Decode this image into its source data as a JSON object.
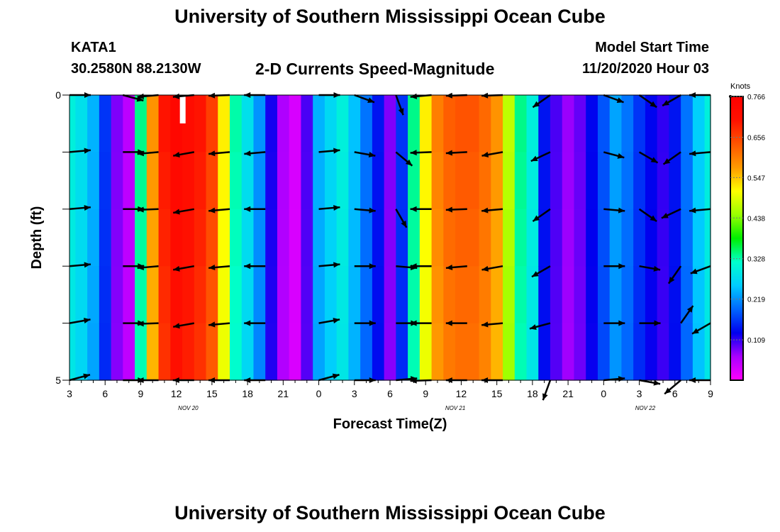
{
  "header": {
    "title": "University of Southern Mississippi Ocean Cube",
    "station": "KATA1",
    "coords": "30.2580N 88.2130W",
    "subtitle": "2-D Currents Speed-Magnitude",
    "model_start_label": "Model Start Time",
    "model_start_value": "11/20/2020 Hour 03"
  },
  "footer": {
    "title": "University of Southern Mississippi Ocean Cube"
  },
  "chart_data": {
    "type": "heatmap",
    "title": "2-D Currents Speed-Magnitude",
    "xlabel": "Forecast Time(Z)",
    "ylabel": "Depth (ft)",
    "x_range": [
      3,
      57
    ],
    "y_range": [
      0,
      5
    ],
    "x_ticks": [
      {
        "hour": 3,
        "label": "3"
      },
      {
        "hour": 6,
        "label": "6"
      },
      {
        "hour": 9,
        "label": "9"
      },
      {
        "hour": 12,
        "label": "12"
      },
      {
        "hour": 15,
        "label": "15"
      },
      {
        "hour": 18,
        "label": "18"
      },
      {
        "hour": 21,
        "label": "21"
      },
      {
        "hour": 24,
        "label": "0"
      },
      {
        "hour": 27,
        "label": "3"
      },
      {
        "hour": 30,
        "label": "6"
      },
      {
        "hour": 33,
        "label": "9"
      },
      {
        "hour": 36,
        "label": "12"
      },
      {
        "hour": 39,
        "label": "15"
      },
      {
        "hour": 42,
        "label": "18"
      },
      {
        "hour": 45,
        "label": "21"
      },
      {
        "hour": 48,
        "label": "0"
      },
      {
        "hour": 51,
        "label": "3"
      },
      {
        "hour": 54,
        "label": "6"
      },
      {
        "hour": 57,
        "label": "9"
      }
    ],
    "y_ticks": [
      {
        "depth": 0,
        "label": "0"
      },
      {
        "depth": 5,
        "label": "5"
      }
    ],
    "date_labels": [
      {
        "hour": 13,
        "label": "NOV 20"
      },
      {
        "hour": 35.5,
        "label": "NOV 21"
      },
      {
        "hour": 51.5,
        "label": "NOV 22"
      }
    ],
    "colorbar": {
      "title": "Knots",
      "min": 0.0,
      "max": 0.766,
      "ticks": [
        "0.766",
        "0.656",
        "0.547",
        "0.438",
        "0.328",
        "0.219",
        "0.109"
      ],
      "colors": [
        "#ff00ff",
        "#aa00ff",
        "#0000ee",
        "#0066ff",
        "#00ccff",
        "#00ffcc",
        "#00ee00",
        "#99ff00",
        "#ffff00",
        "#ff9900",
        "#ff5500",
        "#ff1100",
        "#ff0000"
      ]
    },
    "speed_profile": [
      {
        "hour": 3,
        "speed": 0.3
      },
      {
        "hour": 4,
        "speed": 0.28
      },
      {
        "hour": 5,
        "speed": 0.24
      },
      {
        "hour": 6,
        "speed": 0.16
      },
      {
        "hour": 7,
        "speed": 0.08
      },
      {
        "hour": 8,
        "speed": 0.05
      },
      {
        "hour": 9,
        "speed": 0.34
      },
      {
        "hour": 10,
        "speed": 0.58
      },
      {
        "hour": 11,
        "speed": 0.7
      },
      {
        "hour": 12,
        "speed": 0.74
      },
      {
        "hour": 13,
        "speed": 0.72
      },
      {
        "hour": 14,
        "speed": 0.7
      },
      {
        "hour": 15,
        "speed": 0.66
      },
      {
        "hour": 16,
        "speed": 0.52
      },
      {
        "hour": 17,
        "speed": 0.33
      },
      {
        "hour": 18,
        "speed": 0.28
      },
      {
        "hour": 19,
        "speed": 0.22
      },
      {
        "hour": 20,
        "speed": 0.12
      },
      {
        "hour": 21,
        "speed": 0.06
      },
      {
        "hour": 22,
        "speed": 0.03
      },
      {
        "hour": 23,
        "speed": 0.1
      },
      {
        "hour": 24,
        "speed": 0.24
      },
      {
        "hour": 25,
        "speed": 0.27
      },
      {
        "hour": 26,
        "speed": 0.3
      },
      {
        "hour": 27,
        "speed": 0.25
      },
      {
        "hour": 28,
        "speed": 0.2
      },
      {
        "hour": 29,
        "speed": 0.14
      },
      {
        "hour": 30,
        "speed": 0.08
      },
      {
        "hour": 31,
        "speed": 0.16
      },
      {
        "hour": 32,
        "speed": 0.34
      },
      {
        "hour": 33,
        "speed": 0.52
      },
      {
        "hour": 34,
        "speed": 0.6
      },
      {
        "hour": 35,
        "speed": 0.63
      },
      {
        "hour": 36,
        "speed": 0.64
      },
      {
        "hour": 37,
        "speed": 0.64
      },
      {
        "hour": 38,
        "speed": 0.62
      },
      {
        "hour": 39,
        "speed": 0.58
      },
      {
        "hour": 40,
        "speed": 0.47
      },
      {
        "hour": 41,
        "speed": 0.34
      },
      {
        "hour": 42,
        "speed": 0.3
      },
      {
        "hour": 43,
        "speed": 0.14
      },
      {
        "hour": 44,
        "speed": 0.1
      },
      {
        "hour": 45,
        "speed": 0.07
      },
      {
        "hour": 46,
        "speed": 0.09
      },
      {
        "hour": 47,
        "speed": 0.13
      },
      {
        "hour": 48,
        "speed": 0.18
      },
      {
        "hour": 49,
        "speed": 0.23
      },
      {
        "hour": 50,
        "speed": 0.2
      },
      {
        "hour": 51,
        "speed": 0.16
      },
      {
        "hour": 52,
        "speed": 0.13
      },
      {
        "hour": 53,
        "speed": 0.11
      },
      {
        "hour": 54,
        "speed": 0.14
      },
      {
        "hour": 55,
        "speed": 0.2
      },
      {
        "hour": 56,
        "speed": 0.26
      },
      {
        "hour": 57,
        "speed": 0.3
      }
    ],
    "vectors": [
      {
        "hour": 3,
        "angles": [
          0,
          5,
          5,
          5,
          10,
          15
        ]
      },
      {
        "hour": 7.5,
        "angles": [
          -15,
          0,
          0,
          0,
          0,
          0
        ]
      },
      {
        "hour": 10.5,
        "angles": [
          185,
          185,
          182,
          185,
          182,
          180
        ]
      },
      {
        "hour": 13.5,
        "angles": [
          185,
          190,
          190,
          190,
          190,
          180
        ]
      },
      {
        "hour": 16.5,
        "angles": [
          182,
          185,
          185,
          185,
          185,
          180
        ]
      },
      {
        "hour": 19.5,
        "angles": [
          180,
          185,
          180,
          180,
          180,
          180
        ]
      },
      {
        "hour": 24,
        "angles": [
          0,
          5,
          5,
          5,
          10,
          15
        ]
      },
      {
        "hour": 27,
        "angles": [
          -20,
          -10,
          -5,
          0,
          0,
          0
        ]
      },
      {
        "hour": 30.5,
        "angles": [
          -70,
          -40,
          -60,
          -5,
          0,
          5
        ]
      },
      {
        "hour": 33.5,
        "angles": [
          185,
          182,
          180,
          180,
          180,
          182
        ]
      },
      {
        "hour": 36.5,
        "angles": [
          182,
          183,
          182,
          185,
          180,
          180
        ]
      },
      {
        "hour": 39.5,
        "angles": [
          182,
          190,
          185,
          190,
          185,
          180
        ]
      },
      {
        "hour": 43.5,
        "angles": [
          215,
          205,
          215,
          210,
          195,
          250
        ]
      },
      {
        "hour": 48,
        "angles": [
          -20,
          -15,
          -5,
          0,
          0,
          5
        ]
      },
      {
        "hour": 51,
        "angles": [
          -35,
          -30,
          -35,
          -10,
          0,
          -10
        ]
      },
      {
        "hour": 54.5,
        "angles": [
          210,
          215,
          205,
          235,
          55,
          220
        ]
      },
      {
        "hour": 57,
        "angles": [
          180,
          185,
          185,
          200,
          210,
          180
        ]
      }
    ]
  }
}
